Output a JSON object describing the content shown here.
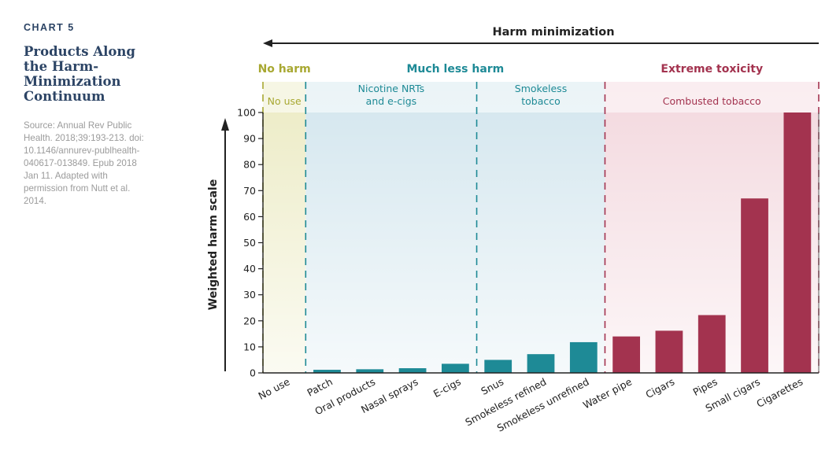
{
  "sidebar": {
    "chart_label": "CHART 5",
    "title": "Products Along the Harm-Minimization Continuum",
    "source": "Source: Annual Rev Public Health. 2018;39:193-213. doi: 10.1146/annurev-publhealth-040617-013849. Epub 2018 Jan 11. Adapted with permission from Nutt et al. 2014."
  },
  "chart_data": {
    "type": "bar",
    "title": "Harm minimization",
    "xlabel": "",
    "ylabel": "Weighted harm scale",
    "ylim": [
      0,
      100
    ],
    "yticks": [
      0,
      10,
      20,
      30,
      40,
      50,
      60,
      70,
      80,
      90,
      100
    ],
    "categories": [
      "No use",
      "Patch",
      "Oral products",
      "Nasal sprays",
      "E-cigs",
      "Snus",
      "Smokeless refined",
      "Smokeless unrefined",
      "Water pipe",
      "Cigars",
      "Pipes",
      "Small cigars",
      "Cigarettes"
    ],
    "values": [
      0,
      1.2,
      1.4,
      1.8,
      3.5,
      5,
      7.2,
      11.8,
      14,
      16.2,
      22.2,
      67,
      100
    ],
    "bar_groups": [
      "none",
      "less",
      "less",
      "less",
      "less",
      "less",
      "less",
      "less",
      "extreme",
      "extreme",
      "extreme",
      "extreme",
      "extreme"
    ],
    "harm_levels": [
      {
        "key": "none",
        "label": "No harm",
        "color": "#a8a832"
      },
      {
        "key": "less",
        "label": "Much less harm",
        "color": "#1e8a96"
      },
      {
        "key": "extreme",
        "label": "Extreme toxicity",
        "color": "#a3334f"
      }
    ],
    "regions": [
      {
        "key": "no-use",
        "label": "No use",
        "label_lines": [
          "No use"
        ],
        "start": 0,
        "end": 1,
        "level": "none",
        "color": "#a8a832",
        "fill": "#ecebc4"
      },
      {
        "key": "nrt",
        "label": "Nicotine NRTs and e-cigs",
        "label_lines": [
          "Nicotine NRTs",
          "and e-cigs"
        ],
        "start": 1,
        "end": 5,
        "level": "less",
        "color": "#1e8a96",
        "fill": "#d3e6ee"
      },
      {
        "key": "smokeless",
        "label": "Smokeless tobacco",
        "label_lines": [
          "Smokeless",
          "tobacco"
        ],
        "start": 5,
        "end": 8,
        "level": "less",
        "color": "#1e8a96",
        "fill": "#d3e6ee"
      },
      {
        "key": "combusted",
        "label": "Combusted tobacco",
        "label_lines": [
          "Combusted tobacco"
        ],
        "start": 8,
        "end": 13,
        "level": "extreme",
        "color": "#a3334f",
        "fill": "#f3d8de"
      }
    ],
    "colors": {
      "bar_less": "#1e8a96",
      "bar_extreme": "#a3334f",
      "axis": "#222222",
      "tick_text": "#222222"
    }
  }
}
